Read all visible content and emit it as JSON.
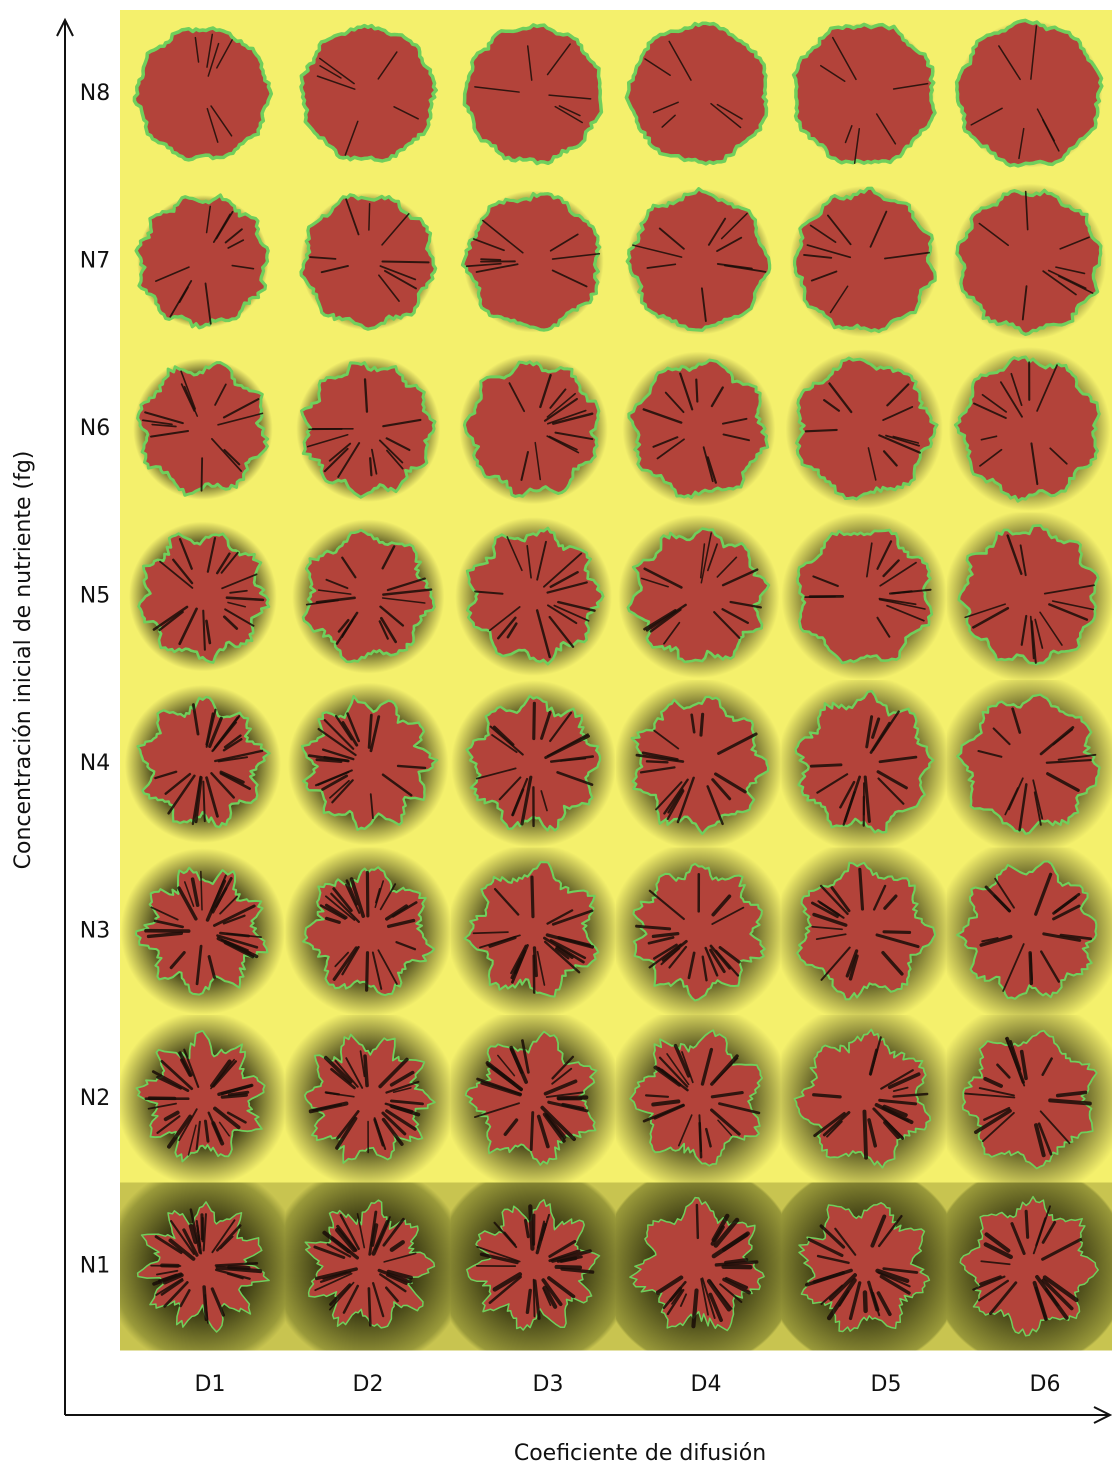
{
  "axes": {
    "x_label": "Coeficiente de difusión",
    "y_label": "Concentración inicial de nutriente (fg)"
  },
  "rows": [
    "N8",
    "N7",
    "N6",
    "N5",
    "N4",
    "N3",
    "N2",
    "N1"
  ],
  "columns": [
    "D1",
    "D2",
    "D3",
    "D4",
    "D5",
    "D6"
  ]
}
